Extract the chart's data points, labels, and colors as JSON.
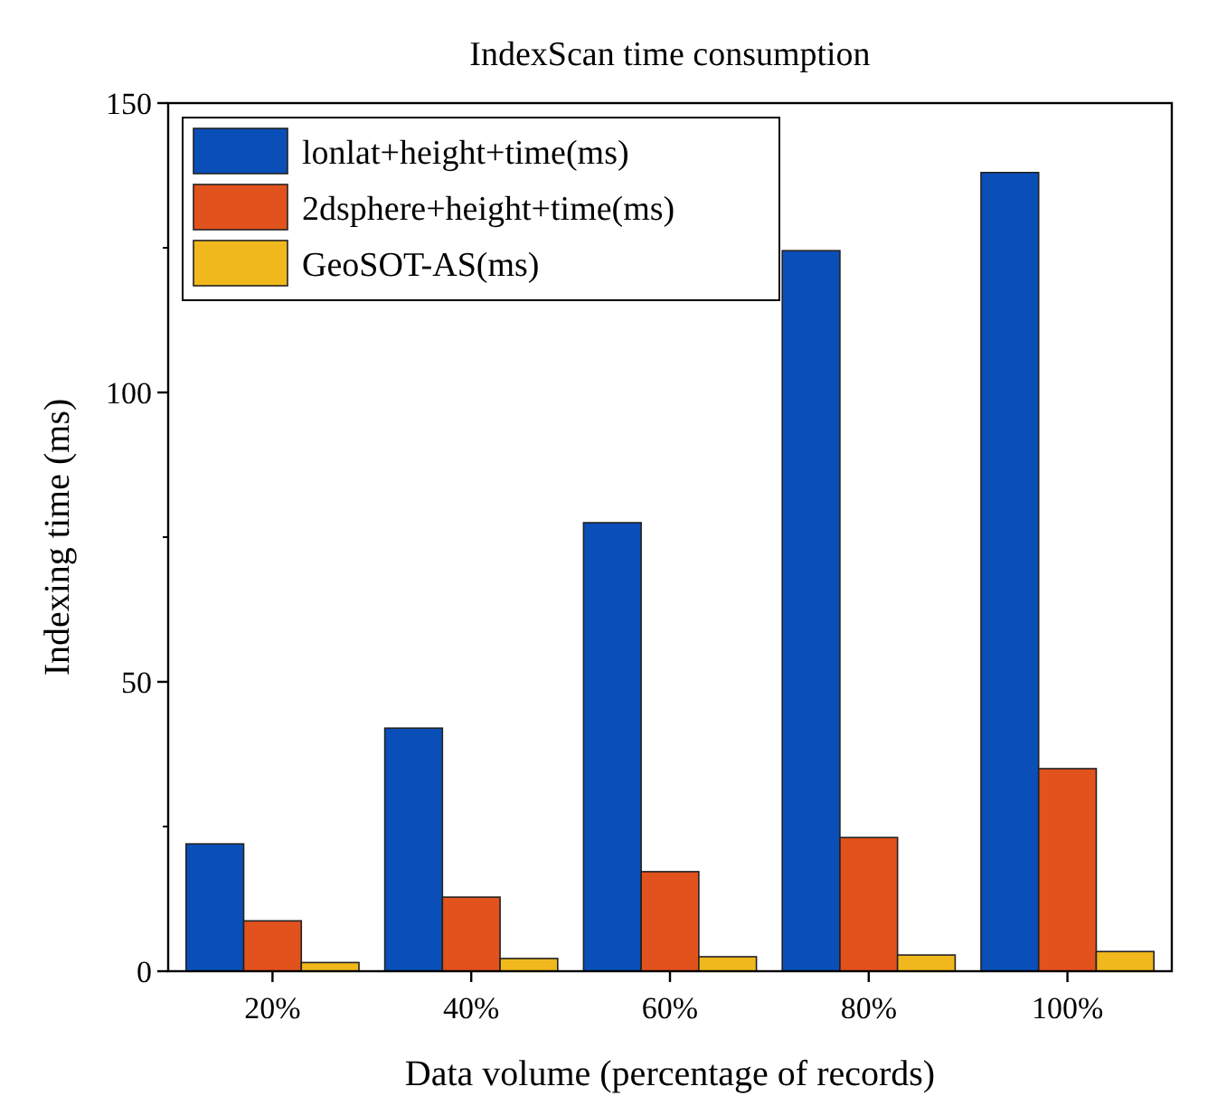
{
  "chart_data": {
    "type": "bar",
    "title": "IndexScan time consumption",
    "xlabel": "Data volume (percentage of records)",
    "ylabel": "Indexing time (ms)",
    "categories": [
      "20%",
      "40%",
      "60%",
      "80%",
      "100%"
    ],
    "series": [
      {
        "name": "lonlat+height+time(ms)",
        "color": "#0a4fb8",
        "values": [
          22,
          42,
          77.5,
          124.5,
          138
        ]
      },
      {
        "name": "2dsphere+height+time(ms)",
        "color": "#e2521c",
        "values": [
          8.7,
          12.8,
          17.2,
          23.1,
          35
        ]
      },
      {
        "name": "GeoSOT-AS(ms)",
        "color": "#f0b81c",
        "values": [
          1.5,
          2.2,
          2.5,
          2.8,
          3.4
        ]
      }
    ],
    "ylim": [
      0,
      150
    ],
    "yticks": [
      0,
      50,
      100,
      150
    ],
    "grid": false,
    "legend": "top left"
  }
}
